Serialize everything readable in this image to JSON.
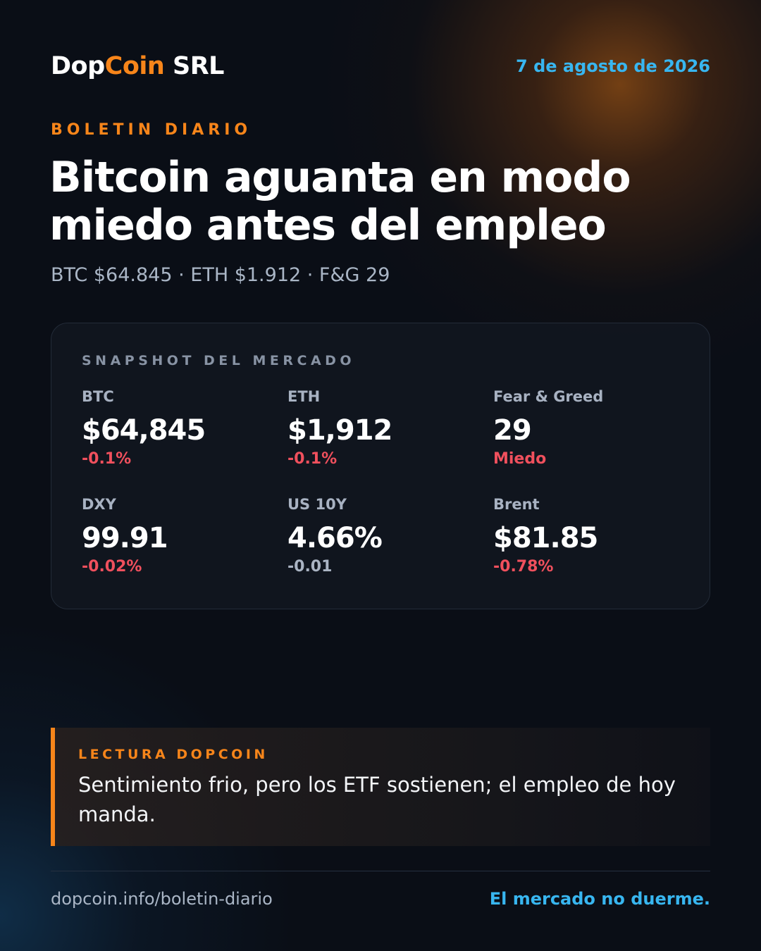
{
  "header": {
    "brand_part1": "Dop",
    "brand_part2": "Coin",
    "brand_part3": " SRL",
    "date": "7 de agosto de 2026"
  },
  "kicker": "BOLETIN DIARIO",
  "headline": "Bitcoin aguanta en modo miedo antes del empleo",
  "subline": "BTC $64.845 · ETH $1.912 · F&G 29",
  "snapshot": {
    "title": "SNAPSHOT DEL MERCADO",
    "metrics": [
      {
        "label": "BTC",
        "value": "$64,845",
        "change": "-0.1%",
        "tone": "negative"
      },
      {
        "label": "ETH",
        "value": "$1,912",
        "change": "-0.1%",
        "tone": "negative"
      },
      {
        "label": "Fear & Greed",
        "value": "29",
        "change": "Miedo",
        "tone": "negative"
      },
      {
        "label": "DXY",
        "value": "99.91",
        "change": "-0.02%",
        "tone": "negative"
      },
      {
        "label": "US 10Y",
        "value": "4.66%",
        "change": "-0.01",
        "tone": "neutral"
      },
      {
        "label": "Brent",
        "value": "$81.85",
        "change": "-0.78%",
        "tone": "negative"
      }
    ]
  },
  "reading": {
    "title": "LECTURA DOPCOIN",
    "text": "Sentimiento frio, pero los ETF sostienen; el empleo de hoy manda."
  },
  "footer": {
    "url": "dopcoin.info/boletin-diario",
    "tagline": "El mercado no duerme."
  },
  "colors": {
    "accent": "#f7851a",
    "link": "#38b6f0",
    "negative": "#f0505d",
    "neutral": "#aab4c3",
    "background": "#0a0e16"
  }
}
